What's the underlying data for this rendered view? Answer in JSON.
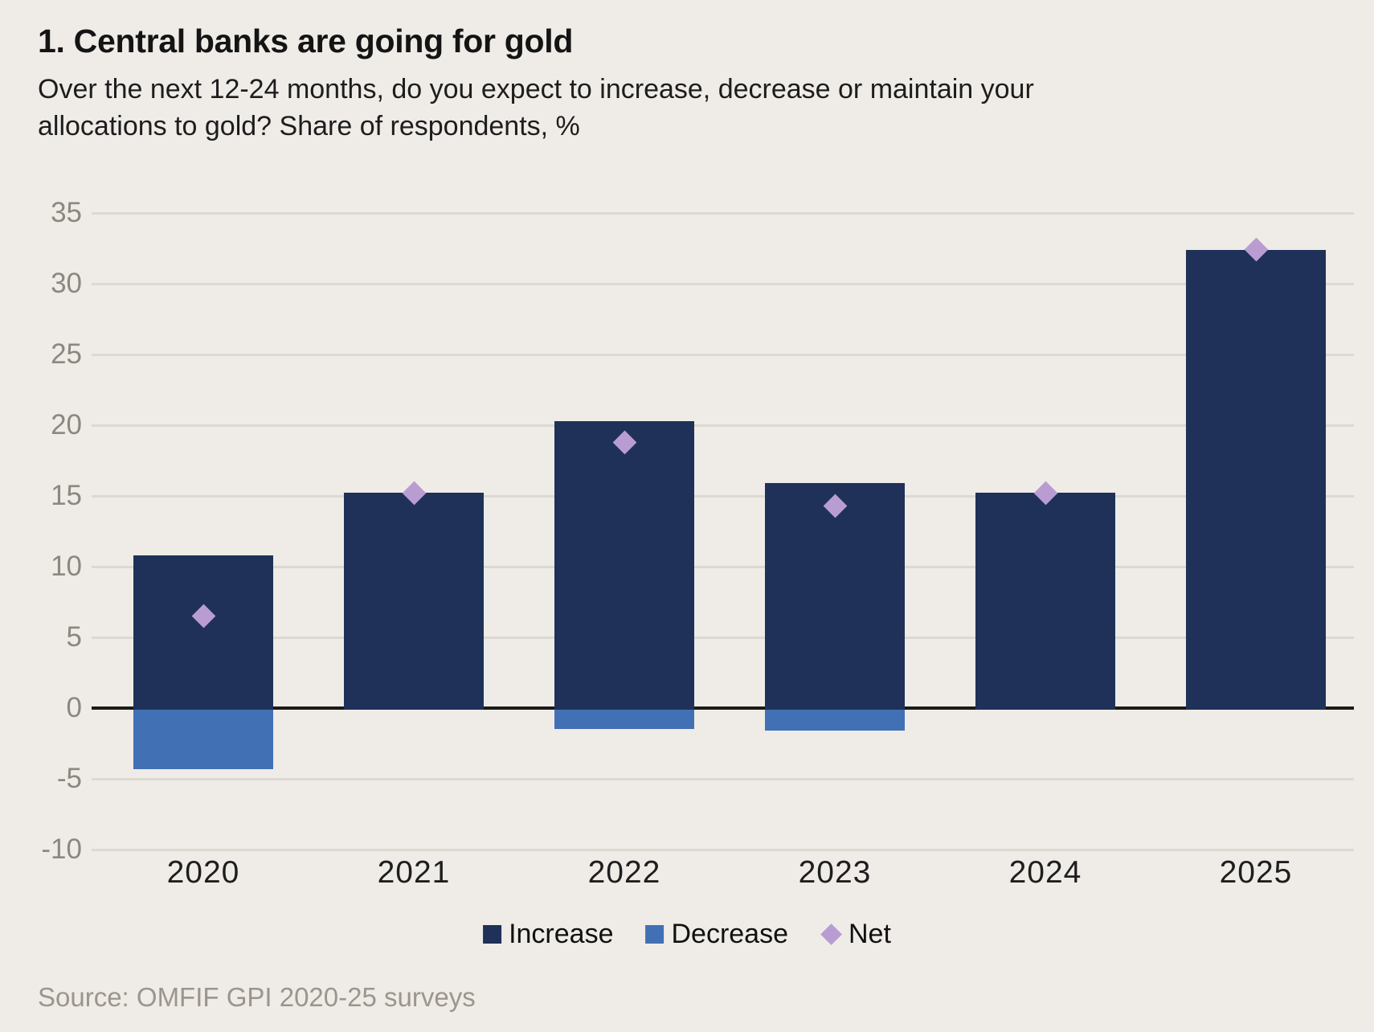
{
  "title": "1. Central banks are going for gold",
  "subtitle_lines": [
    "Over the next 12-24 months, do you expect to increase, decrease or maintain your",
    "allocations to gold? Share of respondents, %"
  ],
  "source": "Source: OMFIF GPI 2020-25 surveys",
  "colors": {
    "increase": "#1F3158",
    "decrease": "#4270B5",
    "net": "#B99DD2",
    "background": "#EFECE7",
    "gridline": "#DCD9D3",
    "zero_line": "#1A1A1A",
    "tick_label": "#8C877F",
    "year_label": "#1E1E1E",
    "legend_text": "#111111",
    "source_text": "#9B958D"
  },
  "legend": [
    {
      "label": "Increase",
      "swatch": "square",
      "color_key": "increase"
    },
    {
      "label": "Decrease",
      "swatch": "square",
      "color_key": "decrease"
    },
    {
      "label": "Net",
      "swatch": "diamond",
      "color_key": "net"
    }
  ],
  "chart_data": {
    "type": "bar",
    "title": "1. Central banks are going for gold",
    "subtitle": "Over the next 12-24 months, do you expect to increase, decrease or maintain your allocations to gold? Share of respondents, %",
    "categories": [
      "2020",
      "2021",
      "2022",
      "2023",
      "2024",
      "2025"
    ],
    "series": [
      {
        "name": "Increase",
        "type": "bar",
        "color_key": "increase",
        "values": [
          10.8,
          15.2,
          20.3,
          15.9,
          15.2,
          32.4
        ]
      },
      {
        "name": "Decrease",
        "type": "bar",
        "color_key": "decrease",
        "values": [
          -4.3,
          0,
          -1.5,
          -1.6,
          0,
          0
        ]
      },
      {
        "name": "Net",
        "type": "point-diamond",
        "color_key": "net",
        "values": [
          6.5,
          15.2,
          18.8,
          14.3,
          15.2,
          32.4
        ]
      }
    ],
    "xlabel": "",
    "ylabel": "Share of respondents, %",
    "ylim": [
      -10,
      35
    ],
    "yticks": [
      35,
      30,
      25,
      20,
      15,
      10,
      5,
      0,
      -5,
      -10
    ],
    "grid": true,
    "legend_position": "bottom",
    "source": "Source: OMFIF GPI 2020-25 surveys"
  }
}
